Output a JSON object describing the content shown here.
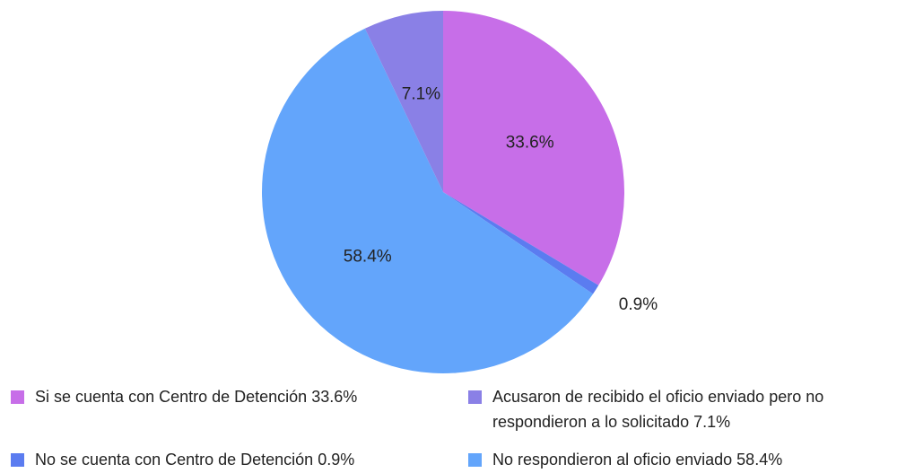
{
  "chart_data": {
    "type": "pie",
    "categories": [
      "Si se cuenta con Centro de Detención 33.6%",
      "No se cuenta con Centro de Detención 0.9%",
      "No respondieron al oficio enviado 58.4%",
      "Acusaron de recibido el oficio enviado pero no respondieron a lo solicitado 7.1%"
    ],
    "values": [
      33.6,
      0.9,
      58.4,
      7.1
    ],
    "value_labels": [
      "33.6%",
      "0.9%",
      "58.4%",
      "7.1%"
    ],
    "colors": [
      "#c76ee8",
      "#5b7cf0",
      "#63a5fb",
      "#8a80e6"
    ]
  }
}
